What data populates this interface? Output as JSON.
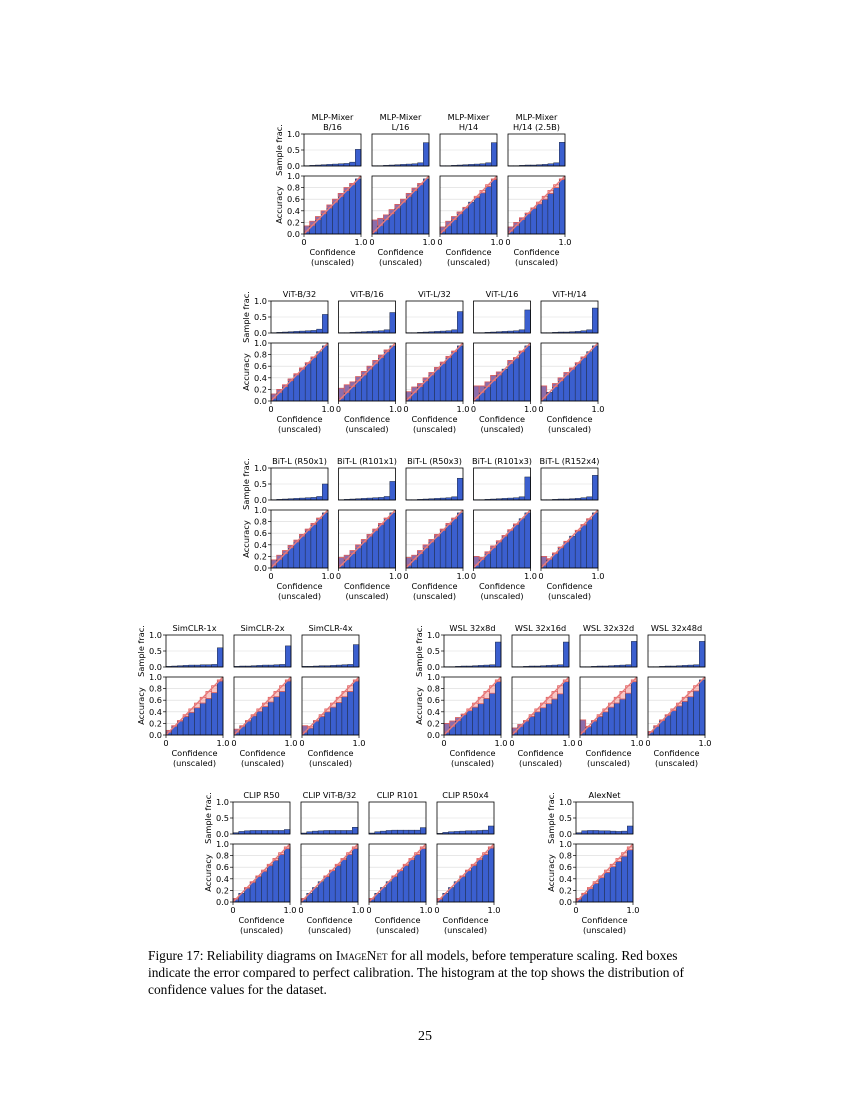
{
  "caption": {
    "label": "Figure 17:",
    "text_before": "Reliability diagrams on",
    "dataset": "ImageNet",
    "text_after": "for all models, before temperature scaling. Red boxes indicate the error compared to perfect calibration. The histogram at the top shows the distribution of confidence values for the dataset."
  },
  "page_number": "25",
  "chart_data": {
    "type": "bar",
    "description_note": "Grid of reliability diagrams: each panel pairs a sample-fraction histogram (top) with an accuracy-vs-confidence bar chart (bottom, 10 bins). Red boxes show gap to the diagonal.",
    "axes": {
      "hist_ylabel": "Sample frac.",
      "hist_ylim": [
        0,
        1
      ],
      "hist_yticks": [
        "0.0",
        "0.5",
        "1.0"
      ],
      "acc_ylabel": "Accuracy",
      "acc_ylim": [
        0,
        1
      ],
      "acc_yticks": [
        "0.0",
        "0.2",
        "0.4",
        "0.6",
        "0.8",
        "1.0"
      ],
      "xlabel": "Confidence",
      "xlabel2": "(unscaled)",
      "xlim": [
        0,
        1
      ],
      "xticks": [
        "0",
        "1.0"
      ]
    },
    "bins": [
      0.05,
      0.15,
      0.25,
      0.35,
      0.45,
      0.55,
      0.65,
      0.75,
      0.85,
      0.95
    ],
    "groups": [
      {
        "name": "MLP-Mixer",
        "models": [
          {
            "title": [
              "MLP-Mixer",
              "B/16"
            ],
            "hist": [
              0.01,
              0.02,
              0.03,
              0.04,
              0.05,
              0.06,
              0.07,
              0.08,
              0.12,
              0.52
            ],
            "acc": [
              0.14,
              0.22,
              0.3,
              0.4,
              0.5,
              0.6,
              0.7,
              0.8,
              0.87,
              0.95
            ]
          },
          {
            "title": [
              "MLP-Mixer",
              "L/16"
            ],
            "hist": [
              0.01,
              0.01,
              0.02,
              0.03,
              0.04,
              0.05,
              0.06,
              0.07,
              0.1,
              0.73
            ],
            "acc": [
              0.24,
              0.27,
              0.33,
              0.42,
              0.51,
              0.6,
              0.7,
              0.79,
              0.87,
              0.95
            ]
          },
          {
            "title": [
              "MLP-Mixer",
              "H/14"
            ],
            "hist": [
              0.01,
              0.01,
              0.02,
              0.03,
              0.04,
              0.05,
              0.06,
              0.07,
              0.1,
              0.73
            ],
            "acc": [
              0.12,
              0.22,
              0.3,
              0.38,
              0.46,
              0.55,
              0.63,
              0.71,
              0.82,
              0.94
            ]
          },
          {
            "title": [
              "MLP-Mixer",
              "H/14 (2.5B)"
            ],
            "hist": [
              0.01,
              0.01,
              0.02,
              0.03,
              0.03,
              0.04,
              0.05,
              0.07,
              0.1,
              0.74
            ],
            "acc": [
              0.12,
              0.2,
              0.28,
              0.36,
              0.44,
              0.52,
              0.6,
              0.7,
              0.8,
              0.94
            ]
          }
        ]
      },
      {
        "name": "ViT",
        "models": [
          {
            "title": [
              "ViT-B/32"
            ],
            "hist": [
              0.01,
              0.02,
              0.03,
              0.04,
              0.05,
              0.06,
              0.07,
              0.08,
              0.12,
              0.58
            ],
            "acc": [
              0.12,
              0.2,
              0.28,
              0.38,
              0.47,
              0.57,
              0.66,
              0.76,
              0.85,
              0.95
            ]
          },
          {
            "title": [
              "ViT-B/16"
            ],
            "hist": [
              0.01,
              0.01,
              0.02,
              0.03,
              0.04,
              0.05,
              0.06,
              0.07,
              0.1,
              0.64
            ],
            "acc": [
              0.22,
              0.28,
              0.33,
              0.42,
              0.51,
              0.6,
              0.7,
              0.79,
              0.88,
              0.95
            ]
          },
          {
            "title": [
              "ViT-L/32"
            ],
            "hist": [
              0.01,
              0.01,
              0.02,
              0.03,
              0.04,
              0.05,
              0.06,
              0.07,
              0.1,
              0.67
            ],
            "acc": [
              0.16,
              0.24,
              0.3,
              0.4,
              0.49,
              0.58,
              0.67,
              0.77,
              0.86,
              0.95
            ]
          },
          {
            "title": [
              "ViT-L/16"
            ],
            "hist": [
              0.01,
              0.01,
              0.02,
              0.03,
              0.04,
              0.05,
              0.06,
              0.07,
              0.1,
              0.72
            ],
            "acc": [
              0.26,
              0.26,
              0.33,
              0.44,
              0.5,
              0.55,
              0.7,
              0.74,
              0.86,
              0.95
            ]
          },
          {
            "title": [
              "ViT-H/14"
            ],
            "hist": [
              0.01,
              0.01,
              0.02,
              0.03,
              0.03,
              0.04,
              0.05,
              0.07,
              0.1,
              0.78
            ],
            "acc": [
              0.26,
              0.15,
              0.3,
              0.4,
              0.49,
              0.57,
              0.66,
              0.76,
              0.85,
              0.95
            ]
          }
        ]
      },
      {
        "name": "BiT-L",
        "models": [
          {
            "title": [
              "BiT-L (R50x1)"
            ],
            "hist": [
              0.01,
              0.02,
              0.03,
              0.04,
              0.05,
              0.06,
              0.07,
              0.08,
              0.11,
              0.5
            ],
            "acc": [
              0.14,
              0.22,
              0.3,
              0.39,
              0.48,
              0.58,
              0.67,
              0.77,
              0.86,
              0.95
            ]
          },
          {
            "title": [
              "BiT-L (R101x1)"
            ],
            "hist": [
              0.01,
              0.02,
              0.03,
              0.04,
              0.05,
              0.06,
              0.07,
              0.08,
              0.11,
              0.58
            ],
            "acc": [
              0.18,
              0.22,
              0.3,
              0.4,
              0.49,
              0.58,
              0.67,
              0.77,
              0.86,
              0.95
            ]
          },
          {
            "title": [
              "BiT-L (R50x3)"
            ],
            "hist": [
              0.01,
              0.01,
              0.02,
              0.03,
              0.04,
              0.05,
              0.06,
              0.07,
              0.1,
              0.68
            ],
            "acc": [
              0.18,
              0.22,
              0.3,
              0.4,
              0.49,
              0.58,
              0.67,
              0.77,
              0.86,
              0.95
            ]
          },
          {
            "title": [
              "BiT-L (R101x3)"
            ],
            "hist": [
              0.01,
              0.01,
              0.02,
              0.03,
              0.04,
              0.05,
              0.06,
              0.07,
              0.1,
              0.72
            ],
            "acc": [
              0.2,
              0.18,
              0.28,
              0.38,
              0.47,
              0.56,
              0.66,
              0.76,
              0.85,
              0.95
            ]
          },
          {
            "title": [
              "BiT-L (R152x4)"
            ],
            "hist": [
              0.01,
              0.01,
              0.02,
              0.03,
              0.03,
              0.04,
              0.05,
              0.07,
              0.1,
              0.77
            ],
            "acc": [
              0.2,
              0.16,
              0.26,
              0.36,
              0.46,
              0.55,
              0.64,
              0.74,
              0.84,
              0.95
            ]
          }
        ]
      },
      {
        "name": "SimCLR",
        "models": [
          {
            "title": [
              "SimCLR-1x"
            ],
            "hist": [
              0.02,
              0.03,
              0.04,
              0.05,
              0.06,
              0.06,
              0.07,
              0.07,
              0.08,
              0.6
            ],
            "acc": [
              0.08,
              0.16,
              0.24,
              0.32,
              0.39,
              0.47,
              0.55,
              0.63,
              0.73,
              0.93
            ]
          },
          {
            "title": [
              "SimCLR-2x"
            ],
            "hist": [
              0.02,
              0.03,
              0.03,
              0.04,
              0.05,
              0.06,
              0.06,
              0.07,
              0.08,
              0.66
            ],
            "acc": [
              0.1,
              0.16,
              0.24,
              0.33,
              0.41,
              0.49,
              0.57,
              0.66,
              0.75,
              0.93
            ]
          },
          {
            "title": [
              "SimCLR-4x"
            ],
            "hist": [
              0.02,
              0.02,
              0.03,
              0.04,
              0.04,
              0.05,
              0.06,
              0.07,
              0.08,
              0.7
            ],
            "acc": [
              0.16,
              0.12,
              0.24,
              0.32,
              0.4,
              0.48,
              0.56,
              0.66,
              0.75,
              0.93
            ]
          }
        ]
      },
      {
        "name": "WSL",
        "models": [
          {
            "title": [
              "WSL 32x8d"
            ],
            "hist": [
              0.01,
              0.01,
              0.02,
              0.03,
              0.03,
              0.04,
              0.05,
              0.06,
              0.07,
              0.78
            ],
            "acc": [
              0.2,
              0.24,
              0.3,
              0.36,
              0.42,
              0.48,
              0.54,
              0.63,
              0.72,
              0.92
            ]
          },
          {
            "title": [
              "WSL 32x16d"
            ],
            "hist": [
              0.01,
              0.01,
              0.02,
              0.03,
              0.03,
              0.04,
              0.05,
              0.06,
              0.07,
              0.78
            ],
            "acc": [
              0.12,
              0.18,
              0.24,
              0.32,
              0.4,
              0.47,
              0.54,
              0.62,
              0.71,
              0.92
            ]
          },
          {
            "title": [
              "WSL 32x32d"
            ],
            "hist": [
              0.01,
              0.01,
              0.02,
              0.03,
              0.03,
              0.04,
              0.05,
              0.06,
              0.07,
              0.8
            ],
            "acc": [
              0.26,
              0.14,
              0.24,
              0.32,
              0.4,
              0.48,
              0.55,
              0.62,
              0.72,
              0.92
            ]
          },
          {
            "title": [
              "WSL 32x48d"
            ],
            "hist": [
              0.01,
              0.01,
              0.02,
              0.03,
              0.03,
              0.04,
              0.05,
              0.06,
              0.07,
              0.8
            ],
            "acc": [
              0.06,
              0.16,
              0.26,
              0.34,
              0.42,
              0.5,
              0.58,
              0.66,
              0.76,
              0.95
            ]
          }
        ]
      },
      {
        "name": "CLIP",
        "models": [
          {
            "title": [
              "CLIP R50"
            ],
            "hist": [
              0.04,
              0.08,
              0.1,
              0.11,
              0.11,
              0.11,
              0.11,
              0.11,
              0.11,
              0.14
            ],
            "acc": [
              0.06,
              0.15,
              0.24,
              0.34,
              0.44,
              0.53,
              0.63,
              0.72,
              0.82,
              0.92
            ]
          },
          {
            "title": [
              "CLIP ViT-B/32"
            ],
            "hist": [
              0.03,
              0.07,
              0.09,
              0.1,
              0.11,
              0.11,
              0.11,
              0.11,
              0.11,
              0.21
            ],
            "acc": [
              0.06,
              0.15,
              0.25,
              0.35,
              0.44,
              0.54,
              0.63,
              0.73,
              0.82,
              0.92
            ]
          },
          {
            "title": [
              "CLIP R101"
            ],
            "hist": [
              0.03,
              0.07,
              0.09,
              0.11,
              0.12,
              0.12,
              0.12,
              0.12,
              0.12,
              0.2
            ],
            "acc": [
              0.06,
              0.15,
              0.25,
              0.35,
              0.44,
              0.54,
              0.63,
              0.73,
              0.82,
              0.92
            ]
          },
          {
            "title": [
              "CLIP R50x4"
            ],
            "hist": [
              0.02,
              0.05,
              0.07,
              0.08,
              0.09,
              0.1,
              0.1,
              0.11,
              0.12,
              0.25
            ],
            "acc": [
              0.06,
              0.15,
              0.25,
              0.35,
              0.44,
              0.54,
              0.63,
              0.73,
              0.82,
              0.93
            ]
          }
        ]
      },
      {
        "name": "AlexNet",
        "models": [
          {
            "title": [
              "AlexNet"
            ],
            "hist": [
              0.04,
              0.1,
              0.11,
              0.11,
              0.1,
              0.1,
              0.09,
              0.08,
              0.09,
              0.25
            ],
            "acc": [
              0.06,
              0.14,
              0.23,
              0.32,
              0.42,
              0.51,
              0.61,
              0.7,
              0.79,
              0.9
            ]
          }
        ]
      }
    ]
  }
}
